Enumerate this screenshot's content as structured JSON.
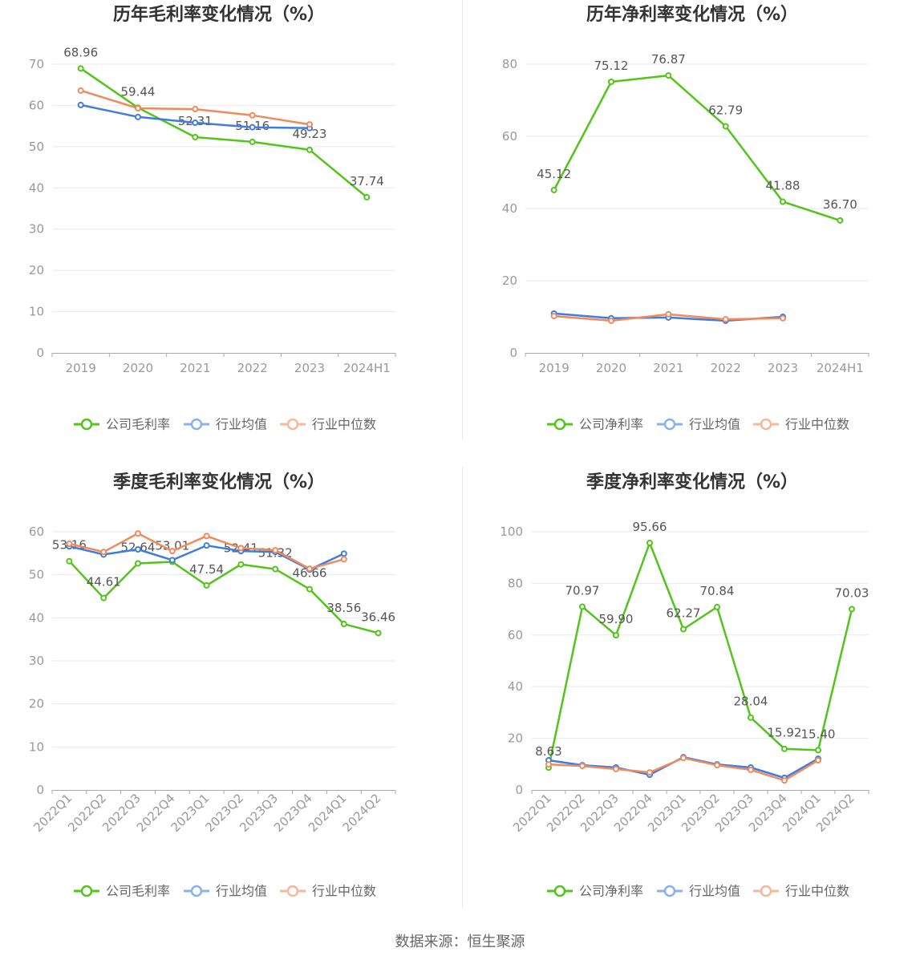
{
  "chart_data": [
    {
      "type": "line",
      "title": "历年毛利率变化情况（%）",
      "categories": [
        "2019",
        "2020",
        "2021",
        "2022",
        "2023",
        "2024H1"
      ],
      "ylim": [
        0,
        70
      ],
      "yticks": [
        0,
        10,
        20,
        30,
        40,
        50,
        60,
        70
      ],
      "grid": true,
      "legend": "bottom",
      "series": [
        {
          "name": "公司毛利率",
          "color": "#52c41a",
          "values": [
            68.96,
            59.44,
            52.31,
            51.16,
            49.23,
            37.74
          ],
          "labels": [
            "68.96",
            "59.44",
            "52.31",
            "51.16",
            "49.23",
            "37.74"
          ]
        },
        {
          "name": "行业均值",
          "color": "#3f7ce0",
          "values": [
            60.1,
            57.2,
            55.8,
            54.7,
            54.5,
            null
          ]
        },
        {
          "name": "行业中位数",
          "color": "#f08a5d",
          "values": [
            63.6,
            59.3,
            59.1,
            57.6,
            55.4,
            null
          ]
        }
      ]
    },
    {
      "type": "line",
      "title": "历年净利率变化情况（%）",
      "categories": [
        "2019",
        "2020",
        "2021",
        "2022",
        "2023",
        "2024H1"
      ],
      "ylim": [
        0,
        80
      ],
      "yticks": [
        0,
        20,
        40,
        60,
        80
      ],
      "grid": true,
      "legend": "bottom",
      "series": [
        {
          "name": "公司净利率",
          "color": "#52c41a",
          "values": [
            45.12,
            75.12,
            76.87,
            62.79,
            41.88,
            36.7
          ],
          "labels": [
            "45.12",
            "75.12",
            "76.87",
            "62.79",
            "41.88",
            "36.70"
          ]
        },
        {
          "name": "行业均值",
          "color": "#3f7ce0",
          "values": [
            10.9,
            9.6,
            9.8,
            8.9,
            10.0,
            null
          ]
        },
        {
          "name": "行业中位数",
          "color": "#f08a5d",
          "values": [
            10.2,
            8.9,
            10.7,
            9.3,
            9.6,
            null
          ]
        }
      ]
    },
    {
      "type": "line",
      "title": "季度毛利率变化情况（%）",
      "categories": [
        "2022Q1",
        "2022Q2",
        "2022Q3",
        "2022Q4",
        "2023Q1",
        "2023Q2",
        "2023Q3",
        "2023Q4",
        "2024Q1",
        "2024Q2"
      ],
      "ylim": [
        0,
        60
      ],
      "yticks": [
        0,
        10,
        20,
        30,
        40,
        50,
        60
      ],
      "grid": true,
      "legend": "bottom",
      "series": [
        {
          "name": "公司毛利率",
          "color": "#52c41a",
          "values": [
            53.16,
            44.61,
            52.64,
            53.01,
            47.54,
            52.41,
            51.32,
            46.66,
            38.56,
            36.46
          ],
          "labels": [
            "53.16",
            "44.61",
            "52.64",
            "53.01",
            "47.54",
            "52.41",
            "51.32",
            "46.66",
            "38.56",
            "36.46"
          ]
        },
        {
          "name": "行业均值",
          "color": "#3f7ce0",
          "values": [
            56.6,
            54.7,
            55.9,
            53.4,
            56.8,
            55.5,
            55.3,
            51.2,
            54.9,
            null
          ]
        },
        {
          "name": "行业中位数",
          "color": "#f08a5d",
          "values": [
            57.2,
            55.3,
            59.6,
            55.5,
            59.0,
            56.2,
            55.7,
            51.4,
            53.6,
            null
          ]
        }
      ]
    },
    {
      "type": "line",
      "title": "季度净利率变化情况（%）",
      "categories": [
        "2022Q1",
        "2022Q2",
        "2022Q3",
        "2022Q4",
        "2023Q1",
        "2023Q2",
        "2023Q3",
        "2023Q4",
        "2024Q1",
        "2024Q2"
      ],
      "ylim": [
        0,
        100
      ],
      "yticks": [
        0,
        20,
        40,
        60,
        80,
        100
      ],
      "grid": true,
      "legend": "bottom",
      "series": [
        {
          "name": "公司净利率",
          "color": "#52c41a",
          "values": [
            8.63,
            70.97,
            59.9,
            95.66,
            62.27,
            70.84,
            28.04,
            15.92,
            15.4,
            70.03
          ],
          "labels": [
            "8.63",
            "70.97",
            "59.90",
            "95.66",
            "62.27",
            "70.84",
            "28.04",
            "15.92",
            "15.40",
            "70.03"
          ]
        },
        {
          "name": "行业均值",
          "color": "#3f7ce0",
          "values": [
            11.5,
            9.6,
            8.7,
            5.9,
            12.7,
            9.9,
            8.7,
            4.7,
            12.1,
            null
          ]
        },
        {
          "name": "行业中位数",
          "color": "#f08a5d",
          "values": [
            9.9,
            9.3,
            8.1,
            6.8,
            12.4,
            9.6,
            7.8,
            3.7,
            11.5,
            null
          ]
        }
      ]
    }
  ],
  "footer": {
    "source": "数据来源：恒生聚源"
  }
}
